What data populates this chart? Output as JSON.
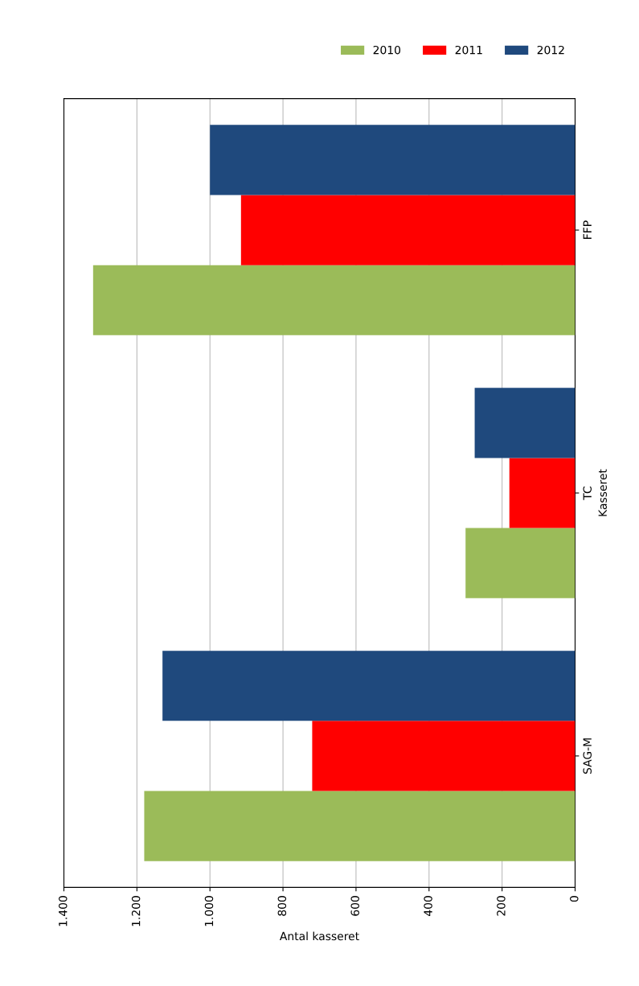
{
  "chart_data": {
    "type": "bar",
    "orientation": "horizontal",
    "xlabel": "Antal kasseret",
    "ylabel": "Kasseret",
    "categories": [
      "FFP",
      "TC",
      "SAG-M"
    ],
    "series": [
      {
        "name": "2010",
        "color": "#9bbb59",
        "values": [
          1320,
          300,
          1180
        ]
      },
      {
        "name": "2011",
        "color": "#ff0000",
        "values": [
          915,
          180,
          720
        ]
      },
      {
        "name": "2012",
        "color": "#1f497d",
        "values": [
          1000,
          275,
          1130
        ]
      }
    ],
    "xlim": [
      1400,
      0
    ],
    "xticks": [
      0,
      200,
      400,
      600,
      800,
      {
        "value": 1000,
        "label": "1.000"
      },
      {
        "value": 1200,
        "label": "1.200"
      },
      {
        "value": 1400,
        "label": "1.400"
      }
    ],
    "grid": "x",
    "legend": "top right"
  }
}
